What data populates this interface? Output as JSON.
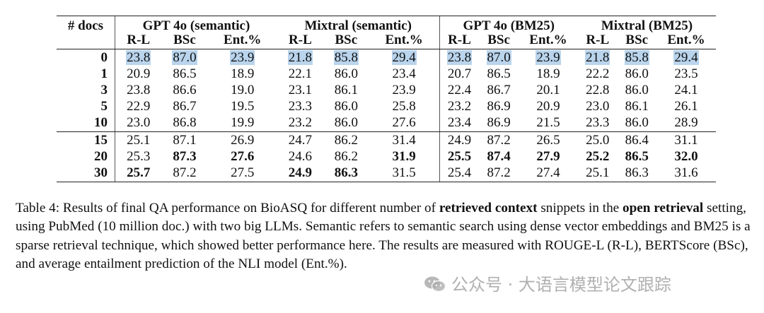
{
  "table": {
    "corner_label": "# docs",
    "groups": [
      "GPT 4o (semantic)",
      "Mixtral (semantic)",
      "GPT 4o (BM25)",
      "Mixtral (BM25)"
    ],
    "sub_headers": [
      "R-L",
      "BSc",
      "Ent.%"
    ],
    "highlight_color": "#b9d4ec",
    "rows": [
      {
        "docs": "0",
        "highlight": true,
        "values": [
          "23.8",
          "87.0",
          "23.9",
          "21.8",
          "85.8",
          "29.4",
          "23.8",
          "87.0",
          "23.9",
          "21.8",
          "85.8",
          "29.4"
        ],
        "bold": []
      },
      {
        "docs": "1",
        "values": [
          "20.9",
          "86.5",
          "18.9",
          "22.1",
          "86.0",
          "23.4",
          "20.7",
          "86.5",
          "18.9",
          "22.2",
          "86.0",
          "23.5"
        ],
        "bold": []
      },
      {
        "docs": "3",
        "values": [
          "23.8",
          "86.6",
          "19.0",
          "23.1",
          "86.1",
          "23.9",
          "22.4",
          "86.7",
          "20.1",
          "22.8",
          "86.0",
          "24.1"
        ],
        "bold": []
      },
      {
        "docs": "5",
        "values": [
          "22.9",
          "86.7",
          "19.5",
          "23.3",
          "86.0",
          "25.8",
          "23.2",
          "86.9",
          "20.9",
          "23.0",
          "86.1",
          "26.1"
        ],
        "bold": []
      },
      {
        "docs": "10",
        "values": [
          "23.0",
          "86.8",
          "19.9",
          "23.2",
          "86.0",
          "27.6",
          "23.4",
          "86.9",
          "21.5",
          "23.3",
          "86.0",
          "28.9"
        ],
        "bold": [],
        "separator_after": true
      },
      {
        "docs": "15",
        "values": [
          "25.1",
          "87.1",
          "26.9",
          "24.7",
          "86.2",
          "31.4",
          "24.9",
          "87.2",
          "26.5",
          "25.0",
          "86.4",
          "31.1"
        ],
        "bold": []
      },
      {
        "docs": "20",
        "values": [
          "25.3",
          "87.3",
          "27.6",
          "24.6",
          "86.2",
          "31.9",
          "25.5",
          "87.4",
          "27.9",
          "25.2",
          "86.5",
          "32.0"
        ],
        "bold": [
          1,
          2,
          5,
          6,
          7,
          8,
          9,
          10,
          11
        ]
      },
      {
        "docs": "30",
        "values": [
          "25.7",
          "87.2",
          "27.5",
          "24.9",
          "86.3",
          "31.5",
          "25.4",
          "87.2",
          "27.4",
          "25.1",
          "86.3",
          "31.6"
        ],
        "bold": [
          0,
          3,
          4
        ]
      }
    ]
  },
  "caption": {
    "p1": "Table 4:  Results of final QA performance on BioASQ for different number of ",
    "b1": "retrieved context",
    "p2": " snippets in the ",
    "b2": "open retrieval",
    "p3": " setting, using PubMed (10 million doc.) with two big LLMs. Semantic refers to semantic search using dense vector embeddings and BM25 is a sparse retrieval technique, which showed better performance here. The results are measured with ROUGE-L (R-L), BERTScore (BSc), and average entailment prediction of the NLI model (Ent.%)."
  },
  "watermark": {
    "text": "公众号 · 大语言模型论文跟踪",
    "icon": "wechat-icon"
  }
}
